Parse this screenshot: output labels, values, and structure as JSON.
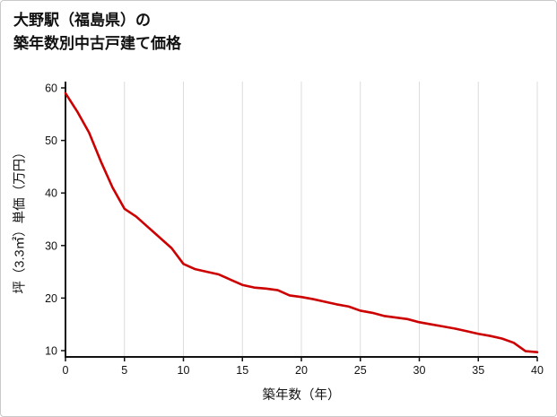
{
  "title": {
    "line1": "大野駅（福島県）の",
    "line2": "築年数別中古戸建て価格"
  },
  "chart_data": {
    "type": "line",
    "title": "大野駅（福島県）の築年数別中古戸建て価格",
    "xlabel": "築年数（年）",
    "ylabel": "坪（3.3㎡）単価（万円）",
    "x": [
      0,
      1,
      2,
      3,
      4,
      5,
      6,
      7,
      8,
      9,
      10,
      11,
      12,
      13,
      14,
      15,
      16,
      17,
      18,
      19,
      20,
      21,
      22,
      23,
      24,
      25,
      26,
      27,
      28,
      29,
      30,
      31,
      32,
      33,
      34,
      35,
      36,
      37,
      38,
      39,
      40
    ],
    "values": [
      59,
      55.5,
      51.5,
      46,
      41,
      37,
      35.5,
      33.5,
      31.5,
      29.5,
      26.5,
      25.5,
      25,
      24.5,
      23.5,
      22.5,
      22,
      21.8,
      21.5,
      20.5,
      20.2,
      19.8,
      19.3,
      18.8,
      18.4,
      17.6,
      17.2,
      16.6,
      16.3,
      16,
      15.4,
      15,
      14.6,
      14.2,
      13.7,
      13.2,
      12.8,
      12.3,
      11.5,
      9.9,
      9.7
    ],
    "x_ticks": [
      0,
      5,
      10,
      15,
      20,
      25,
      30,
      35,
      40
    ],
    "y_ticks": [
      10,
      20,
      30,
      40,
      50,
      60
    ],
    "xlim": [
      0,
      40
    ],
    "ylim": [
      8.8,
      61.2
    ],
    "grid": "vertical",
    "line_color": "#cc0000",
    "grid_color": "#dcdcdc",
    "axis_color": "#111111",
    "tick_label_color": "#111111"
  }
}
